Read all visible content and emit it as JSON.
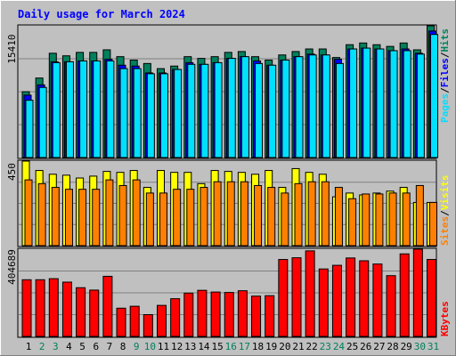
{
  "title": "Daily usage for March 2024",
  "colors": {
    "background": "#C0C0C0",
    "title": "#0000FF",
    "hits": "#00805C",
    "files": "#0000FF",
    "pages": "#00E0FF",
    "visits": "#FFFF00",
    "sites": "#FF8000",
    "kbytes": "#FF0000",
    "weekday_label": "#000000",
    "weekend_label": "#00805C"
  },
  "chart_data": [
    {
      "type": "bar",
      "name": "hits-files-pages",
      "ylabel_parts": [
        "Pages",
        "Files",
        "Hits"
      ],
      "max_label": "15410",
      "categories": [
        "1",
        "2",
        "3",
        "4",
        "5",
        "6",
        "7",
        "8",
        "9",
        "10",
        "11",
        "12",
        "13",
        "14",
        "15",
        "16",
        "17",
        "18",
        "19",
        "20",
        "21",
        "22",
        "23",
        "24",
        "25",
        "26",
        "27",
        "28",
        "29",
        "30",
        "31"
      ],
      "weekend": [
        false,
        true,
        true,
        false,
        false,
        false,
        false,
        false,
        true,
        true,
        false,
        false,
        false,
        false,
        false,
        true,
        true,
        false,
        false,
        false,
        false,
        false,
        true,
        true,
        false,
        false,
        false,
        false,
        false,
        true,
        true
      ],
      "series": [
        {
          "name": "Hits",
          "values": [
            7700,
            9300,
            12200,
            11900,
            12300,
            12300,
            12600,
            11800,
            11400,
            11000,
            10400,
            10700,
            11800,
            11600,
            11800,
            12300,
            12400,
            11800,
            11400,
            12000,
            12400,
            12700,
            12700,
            11700,
            13200,
            13400,
            13200,
            13000,
            13400,
            12600,
            15410
          ]
        },
        {
          "name": "Files",
          "values": [
            7300,
            8500,
            11200,
            11200,
            11300,
            11300,
            11500,
            10800,
            10700,
            9900,
            9900,
            10300,
            11100,
            10900,
            11100,
            11600,
            11800,
            11300,
            10800,
            11400,
            11800,
            12100,
            12000,
            11500,
            12700,
            12800,
            12700,
            12500,
            12700,
            12200,
            14800
          ]
        },
        {
          "name": "Pages",
          "values": [
            6700,
            8200,
            11100,
            11200,
            11300,
            11300,
            11300,
            10400,
            10400,
            9800,
            9800,
            10300,
            10900,
            10900,
            11100,
            11600,
            11800,
            11000,
            10800,
            11400,
            11800,
            12000,
            12000,
            11000,
            12700,
            12800,
            12700,
            12500,
            12500,
            12100,
            14400
          ]
        }
      ],
      "ylim": [
        0,
        15410
      ]
    },
    {
      "type": "bar",
      "name": "visits-sites",
      "ylabel_parts": [
        "Sites",
        "Visits"
      ],
      "max_label": "450",
      "categories": [
        "1",
        "2",
        "3",
        "4",
        "5",
        "6",
        "7",
        "8",
        "9",
        "10",
        "11",
        "12",
        "13",
        "14",
        "15",
        "16",
        "17",
        "18",
        "19",
        "20",
        "21",
        "22",
        "23",
        "24",
        "25",
        "26",
        "27",
        "28",
        "29",
        "30",
        "31"
      ],
      "series": [
        {
          "name": "Visits",
          "values": [
            450,
            400,
            380,
            375,
            360,
            370,
            395,
            390,
            400,
            310,
            400,
            390,
            390,
            330,
            400,
            395,
            390,
            380,
            400,
            310,
            410,
            390,
            380,
            260,
            280,
            270,
            280,
            290,
            310,
            230,
            230
          ]
        },
        {
          "name": "Sites",
          "values": [
            350,
            330,
            310,
            300,
            300,
            300,
            350,
            320,
            350,
            280,
            280,
            300,
            300,
            310,
            340,
            340,
            340,
            320,
            310,
            280,
            330,
            340,
            340,
            310,
            250,
            275,
            275,
            280,
            280,
            320,
            230
          ]
        }
      ],
      "ylim": [
        0,
        450
      ]
    },
    {
      "type": "bar",
      "name": "kbytes",
      "ylabel_parts": [
        "KBytes"
      ],
      "max_label": "404689",
      "categories": [
        "1",
        "2",
        "3",
        "4",
        "5",
        "6",
        "7",
        "8",
        "9",
        "10",
        "11",
        "12",
        "13",
        "14",
        "15",
        "16",
        "17",
        "18",
        "19",
        "20",
        "21",
        "22",
        "23",
        "24",
        "25",
        "26",
        "27",
        "28",
        "29",
        "30",
        "31"
      ],
      "series": [
        {
          "name": "KBytes",
          "values": [
            263000,
            263000,
            268000,
            252000,
            226000,
            215000,
            279000,
            131000,
            140000,
            101000,
            144000,
            175000,
            201000,
            214000,
            206000,
            204000,
            212000,
            187000,
            189000,
            357000,
            365000,
            397000,
            313000,
            330000,
            364000,
            351000,
            336000,
            282000,
            383000,
            405000,
            357000
          ]
        }
      ],
      "ylim": [
        0,
        404689
      ]
    }
  ]
}
